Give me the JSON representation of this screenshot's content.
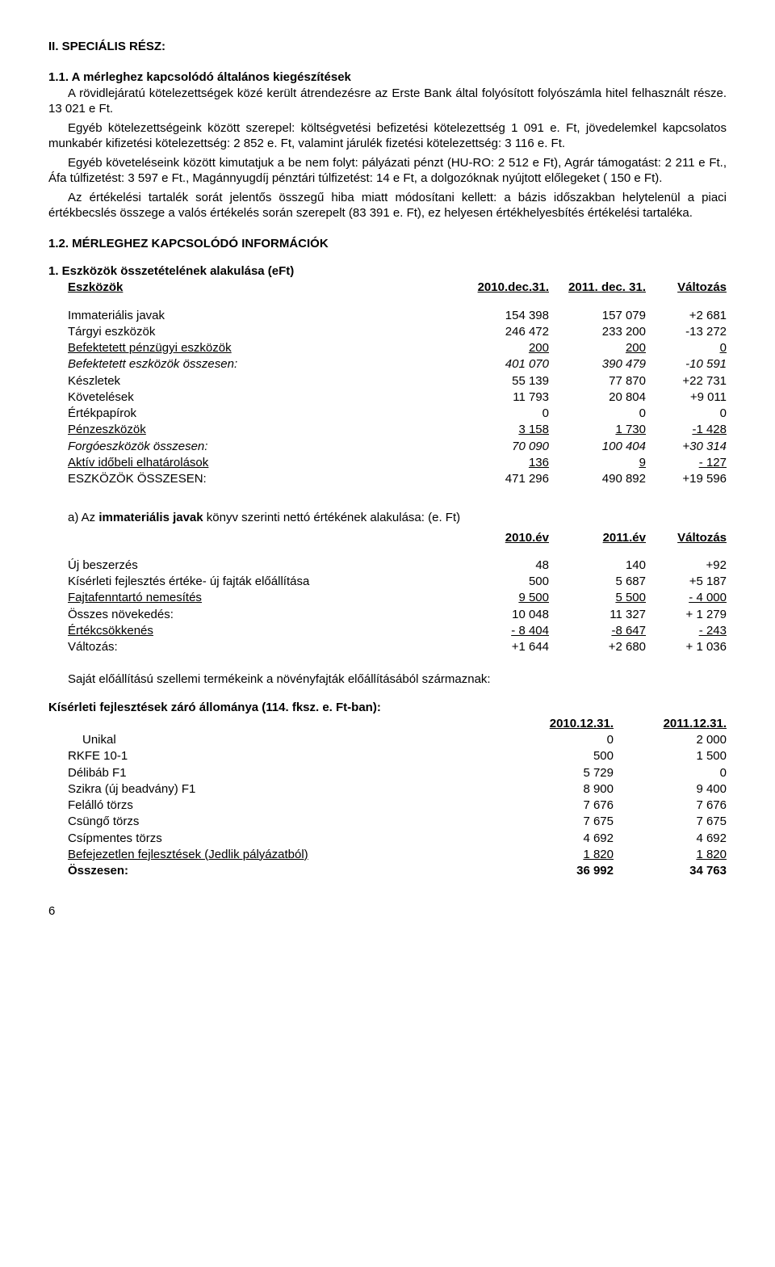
{
  "heading_main": "II. SPECIÁLIS RÉSZ:",
  "h11": "1.1. A mérleghez kapcsolódó általános kiegészítések",
  "p1a": "A rövidlejáratú kötelezettségek közé került átrendezésre az Erste Bank által folyósított folyószámla hitel felhasznált része. 13 021 e Ft.",
  "p1b": "Egyéb kötelezettségeink között szerepel: költségvetési befizetési kötelezettség 1 091 e. Ft, jövedelemkel kapcsolatos munkabér kifizetési kötelezettség: 2 852 e. Ft, valamint járulék fizetési kötelezettség: 3 116 e. Ft.",
  "p1c": "Egyéb követeléseink között kimutatjuk a be nem folyt: pályázati pénzt (HU-RO: 2 512 e Ft), Agrár támogatást: 2 211 e Ft., Áfa túlfizetést: 3 597 e Ft., Magánnyugdíj pénztári túlfizetést: 14 e Ft, a dolgozóknak nyújtott előlegeket ( 150 e Ft).",
  "p1d": "Az értékelési tartalék sorát jelentős összegű hiba miatt módosítani kellett: a bázis időszakban helytelenül a piaci értékbecslés összege a valós értékelés során szerepelt (83 391 e. Ft), ez helyesen értékhelyesbítés értékelési tartaléka.",
  "h12": "1.2. MÉRLEGHEZ KAPCSOLÓDÓ INFORMÁCIÓK",
  "t1_title": "1. Eszközök összetételének alakulása (eFt)",
  "t1_head_label": "Eszközök",
  "t1_head_c1": "2010.dec.31.",
  "t1_head_c2": "2011. dec. 31.",
  "t1_head_c3": "Változás",
  "t1_rows": [
    {
      "label": "Immateriális javak",
      "c1": "154 398",
      "c2": "157 079",
      "c3": "+2 681",
      "style": ""
    },
    {
      "label": "Tárgyi eszközök",
      "c1": "246 472",
      "c2": "233 200",
      "c3": "-13 272",
      "style": ""
    },
    {
      "label": "Befektetett pénzügyi eszközök",
      "c1": "200",
      "c2": "200",
      "c3": "0",
      "style": "underline"
    },
    {
      "label": "Befektetett eszközök összesen:",
      "c1": "401 070",
      "c2": "390 479",
      "c3": "-10 591",
      "style": "italic"
    },
    {
      "label": "Készletek",
      "c1": "55 139",
      "c2": "77 870",
      "c3": "+22 731",
      "style": ""
    },
    {
      "label": "Követelések",
      "c1": "11 793",
      "c2": "20 804",
      "c3": "+9 011",
      "style": ""
    },
    {
      "label": "Értékpapírok",
      "c1": "0",
      "c2": "0",
      "c3": "0",
      "style": ""
    },
    {
      "label": "Pénzeszközök",
      "c1": "3 158",
      "c2": "1 730",
      "c3": "-1 428",
      "style": "underline"
    },
    {
      "label": "Forgóeszközök összesen:",
      "c1": "70 090",
      "c2": "100 404",
      "c3": "+30 314",
      "style": "italic"
    },
    {
      "label": "Aktív időbeli elhatárolások",
      "c1": "136",
      "c2": "9",
      "c3": "- 127",
      "style": "underline"
    },
    {
      "label": "ESZKÖZÖK ÖSSZESEN:",
      "c1": "471 296",
      "c2": "490 892",
      "c3": "+19 596",
      "style": ""
    }
  ],
  "t2_intro_a": "a) Az ",
  "t2_intro_b": "immateriális javak",
  "t2_intro_c": " könyv szerinti nettó értékének alakulása: (e. Ft)",
  "t2_head_c1": "2010.év",
  "t2_head_c2": "2011.év",
  "t2_head_c3": "Változás",
  "t2_rows": [
    {
      "label": "Új beszerzés",
      "c1": "48",
      "c2": "140",
      "c3": "+92",
      "style": ""
    },
    {
      "label": "Kísérleti fejlesztés értéke- új fajták előállítása",
      "c1": "500",
      "c2": "5 687",
      "c3": "+5 187",
      "style": ""
    },
    {
      "label": "Fajtafenntartó nemesítés",
      "c1": "9 500",
      "c2": "5 500",
      "c3": "- 4 000",
      "style": "underline"
    },
    {
      "label": "Összes növekedés:",
      "c1": "10 048",
      "c2": "11 327",
      "c3": "+ 1 279",
      "style": ""
    },
    {
      "label": "Értékcsökkenés",
      "c1": "- 8 404",
      "c2": "-8 647",
      "c3": "-   243",
      "style": "underline"
    },
    {
      "label": "Változás:",
      "c1": "+1 644",
      "c2": "+2 680",
      "c3": "+ 1 036",
      "style": ""
    }
  ],
  "p_origin": "Saját előállítású szellemi termékeink a növényfajták előállításából származnak:",
  "t3_title": "Kísérleti fejlesztések záró állománya (114. fksz. e. Ft-ban):",
  "t3_head_c1": "2010.12.31.",
  "t3_head_c2": "2011.12.31.",
  "t3_rows": [
    {
      "label": "Unikal",
      "c1": "0",
      "c2": "2 000",
      "indent": "1",
      "style": ""
    },
    {
      "label": "RKFE 10-1",
      "c1": "500",
      "c2": "1 500",
      "indent": "0",
      "style": ""
    },
    {
      "label": "Délibáb   F1",
      "c1": "5 729",
      "c2": "0",
      "indent": "0",
      "style": ""
    },
    {
      "label": "Szikra (új beadvány)  F1",
      "c1": "8 900",
      "c2": "9 400",
      "indent": "0",
      "style": ""
    },
    {
      "label": "Felálló törzs",
      "c1": "7 676",
      "c2": "7 676",
      "indent": "0",
      "style": ""
    },
    {
      "label": "Csüngő törzs",
      "c1": "7 675",
      "c2": "7 675",
      "indent": "0",
      "style": ""
    },
    {
      "label": "Csípmentes törzs",
      "c1": "4 692",
      "c2": "4 692",
      "indent": "0",
      "style": ""
    },
    {
      "label": "Befejezetlen fejlesztések (Jedlik pályázatból)",
      "c1": "1 820",
      "c2": "1 820",
      "indent": "0",
      "style": "underline"
    },
    {
      "label": "Összesen:",
      "c1": "36 992",
      "c2": "34 763",
      "indent": "0",
      "style": "bold"
    }
  ],
  "page_number": "6"
}
